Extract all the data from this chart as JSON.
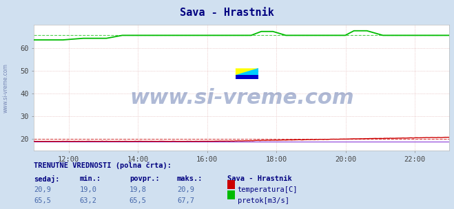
{
  "title": "Sava - Hrastnik",
  "title_color": "#000080",
  "bg_color": "#d0e0f0",
  "plot_bg_color": "#ffffff",
  "grid_color": "#ddaaaa",
  "xmin": 0,
  "xmax": 288,
  "ymin": 15,
  "ymax": 70,
  "yticks": [
    20,
    30,
    40,
    50,
    60
  ],
  "xtick_labels": [
    "12:00",
    "14:00",
    "16:00",
    "18:00",
    "20:00",
    "22:00"
  ],
  "xtick_positions": [
    24,
    72,
    120,
    168,
    216,
    264
  ],
  "temp_color": "#cc0000",
  "flow_color": "#00bb00",
  "dashed_temp": 20.0,
  "dashed_flow": 65.5,
  "watermark": "www.si-vreme.com",
  "watermark_color": "#1a3a8a",
  "watermark_alpha": 0.35,
  "watermark_fontsize": 22,
  "ylabel_text": "www.si-vreme.com",
  "footer_title": "TRENUTNE VREDNOSTI (polna črta):",
  "col_headers": [
    "sedaj:",
    "min.:",
    "povpr.:",
    "maks.:",
    "Sava - Hrastnik"
  ],
  "footer_temp": [
    "20,9",
    "19,0",
    "19,8",
    "20,9"
  ],
  "footer_flow": [
    "65,5",
    "63,2",
    "65,5",
    "67,7"
  ],
  "footer_label_temp": "temperatura[C]",
  "footer_label_flow": "pretok[m3/s]",
  "temp_color_footer": "#cc0000",
  "flow_color_footer": "#00bb00",
  "logo_color_yellow": "#ffff00",
  "logo_color_cyan": "#00ccff",
  "logo_color_blue": "#0000cc"
}
